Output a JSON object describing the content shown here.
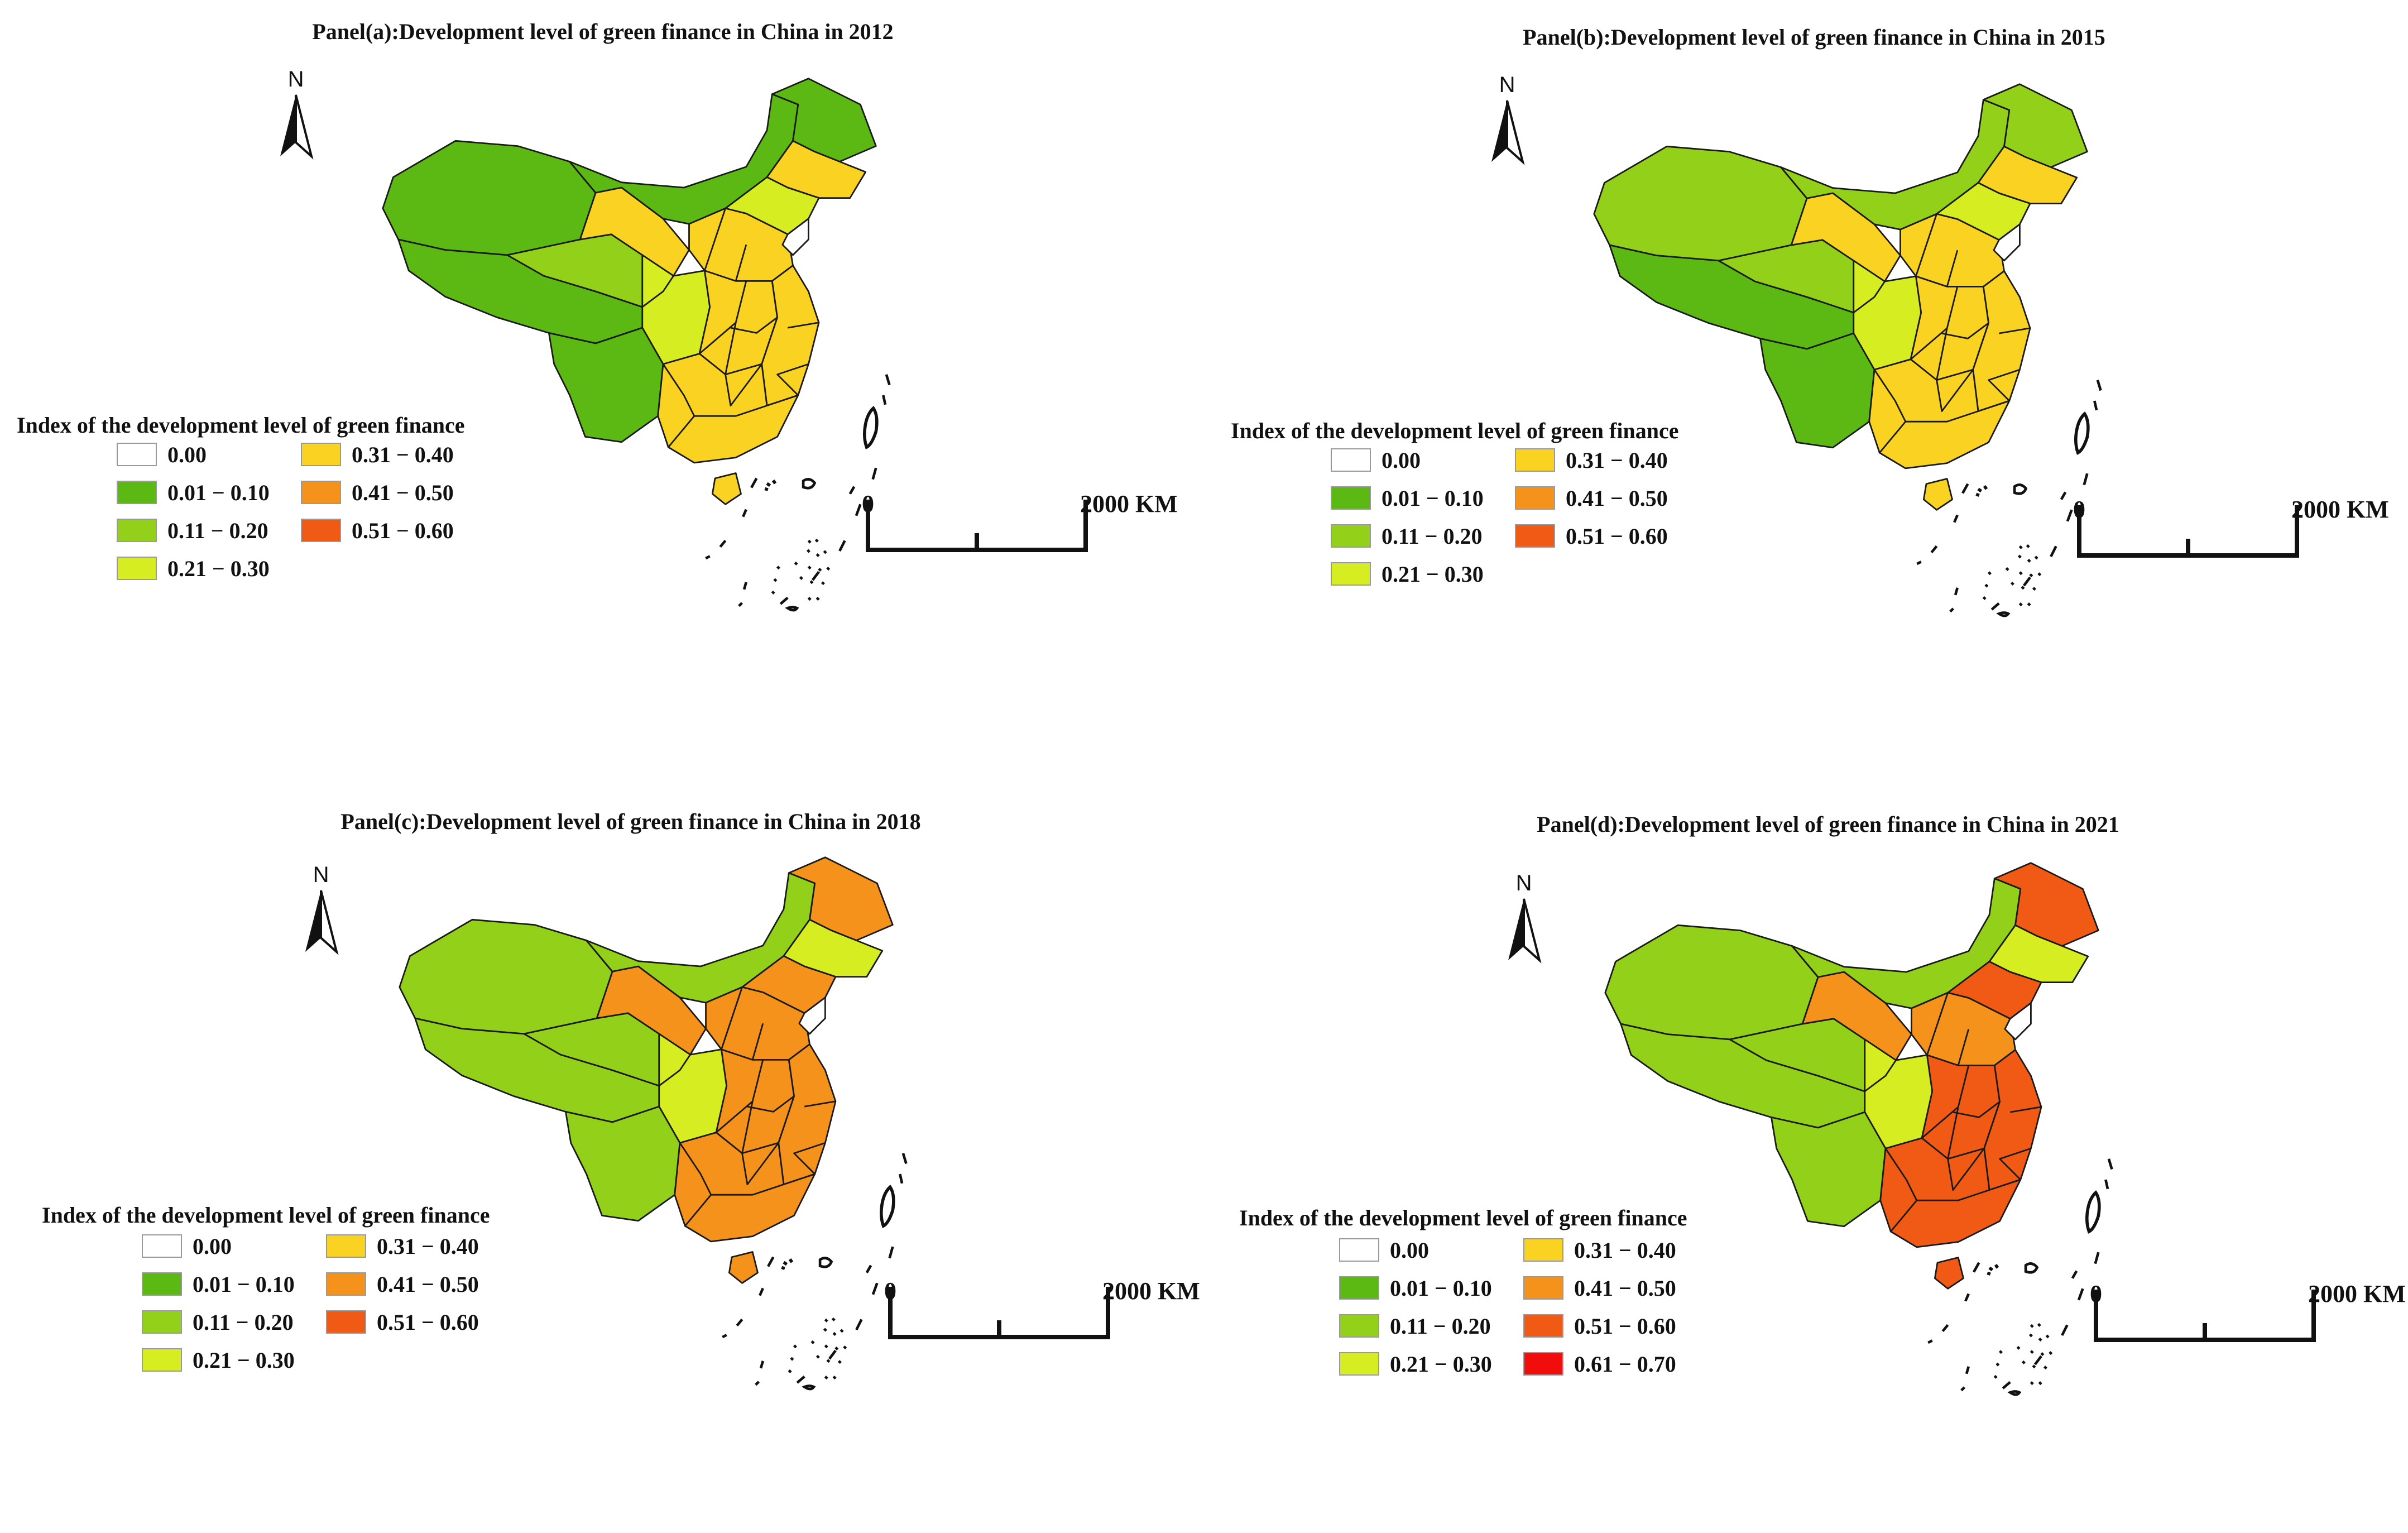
{
  "panels": [
    {
      "id": "a",
      "title": "Panel(a):Development level of green finance in China in 2012",
      "legend_title": "Index of the development level of green finance",
      "legend": [
        {
          "label": "0.00",
          "color": "#ffffff"
        },
        {
          "label": "0.01 − 0.10",
          "color": "#5cb812"
        },
        {
          "label": "0.11 − 0.20",
          "color": "#92d01a"
        },
        {
          "label": "0.21 − 0.30",
          "color": "#d6ee21"
        },
        {
          "label": "0.31 − 0.40",
          "color": "#fad322"
        },
        {
          "label": "0.41 − 0.50",
          "color": "#f5921b"
        },
        {
          "label": "0.51 − 0.60",
          "color": "#f05a14"
        }
      ],
      "scale": {
        "zero": "0",
        "end": "2000 KM"
      },
      "north": "N",
      "regions": {
        "xinjiang": 1,
        "tibet": 1,
        "yunnan": 1,
        "innermongolia": 1,
        "heilongjiang": 1,
        "qinghai": 2,
        "gansu": 4,
        "sichuan": 3,
        "jilin": 4,
        "liaoning": 3,
        "north": 4,
        "central": 4,
        "east": 4,
        "south": 4,
        "hainan": 4
      }
    },
    {
      "id": "b",
      "title": "Panel(b):Development level of green finance in China in 2015",
      "legend_title": "Index of the development level of green finance",
      "legend": [
        {
          "label": "0.00",
          "color": "#ffffff"
        },
        {
          "label": "0.01 − 0.10",
          "color": "#5cb812"
        },
        {
          "label": "0.11 − 0.20",
          "color": "#92d01a"
        },
        {
          "label": "0.21 − 0.30",
          "color": "#d6ee21"
        },
        {
          "label": "0.31 − 0.40",
          "color": "#fad322"
        },
        {
          "label": "0.41 − 0.50",
          "color": "#f5921b"
        },
        {
          "label": "0.51 − 0.60",
          "color": "#f05a14"
        }
      ],
      "scale": {
        "zero": "0",
        "end": "2000 KM"
      },
      "north": "N",
      "regions": {
        "xinjiang": 2,
        "tibet": 1,
        "yunnan": 1,
        "innermongolia": 2,
        "heilongjiang": 2,
        "qinghai": 2,
        "gansu": 4,
        "sichuan": 3,
        "jilin": 4,
        "liaoning": 3,
        "north": 4,
        "central": 4,
        "east": 4,
        "south": 4,
        "hainan": 4
      }
    },
    {
      "id": "c",
      "title": "Panel(c):Development level of green finance in China in 2018",
      "legend_title": "Index of the development level of green finance",
      "legend": [
        {
          "label": "0.00",
          "color": "#ffffff"
        },
        {
          "label": "0.01 − 0.10",
          "color": "#5cb812"
        },
        {
          "label": "0.11 − 0.20",
          "color": "#92d01a"
        },
        {
          "label": "0.21 − 0.30",
          "color": "#d6ee21"
        },
        {
          "label": "0.31 − 0.40",
          "color": "#fad322"
        },
        {
          "label": "0.41 − 0.50",
          "color": "#f5921b"
        },
        {
          "label": "0.51 − 0.60",
          "color": "#f05a14"
        }
      ],
      "scale": {
        "zero": "0",
        "end": "2000 KM"
      },
      "north": "N",
      "regions": {
        "xinjiang": 2,
        "tibet": 2,
        "yunnan": 2,
        "innermongolia": 2,
        "heilongjiang": 5,
        "qinghai": 2,
        "gansu": 5,
        "sichuan": 3,
        "jilin": 3,
        "liaoning": 5,
        "north": 5,
        "central": 5,
        "east": 5,
        "south": 5,
        "hainan": 5
      }
    },
    {
      "id": "d",
      "title": "Panel(d):Development level of green finance in China in 2021",
      "legend_title": "Index of the development level of green finance",
      "legend": [
        {
          "label": "0.00",
          "color": "#ffffff"
        },
        {
          "label": "0.01 − 0.10",
          "color": "#5cb812"
        },
        {
          "label": "0.11 − 0.20",
          "color": "#92d01a"
        },
        {
          "label": "0.21 − 0.30",
          "color": "#d6ee21"
        },
        {
          "label": "0.31 − 0.40",
          "color": "#fad322"
        },
        {
          "label": "0.41 − 0.50",
          "color": "#f5921b"
        },
        {
          "label": "0.51 − 0.60",
          "color": "#f05a14"
        },
        {
          "label": "0.61 − 0.70",
          "color": "#f20d0d"
        }
      ],
      "scale": {
        "zero": "0",
        "end": "2000 KM"
      },
      "north": "N",
      "regions": {
        "xinjiang": 2,
        "tibet": 2,
        "yunnan": 2,
        "innermongolia": 2,
        "heilongjiang": 6,
        "qinghai": 2,
        "gansu": 5,
        "sichuan": 3,
        "jilin": 3,
        "liaoning": 6,
        "north": 5,
        "central": 6,
        "east": 6,
        "south": 6,
        "hainan": 6
      }
    }
  ]
}
